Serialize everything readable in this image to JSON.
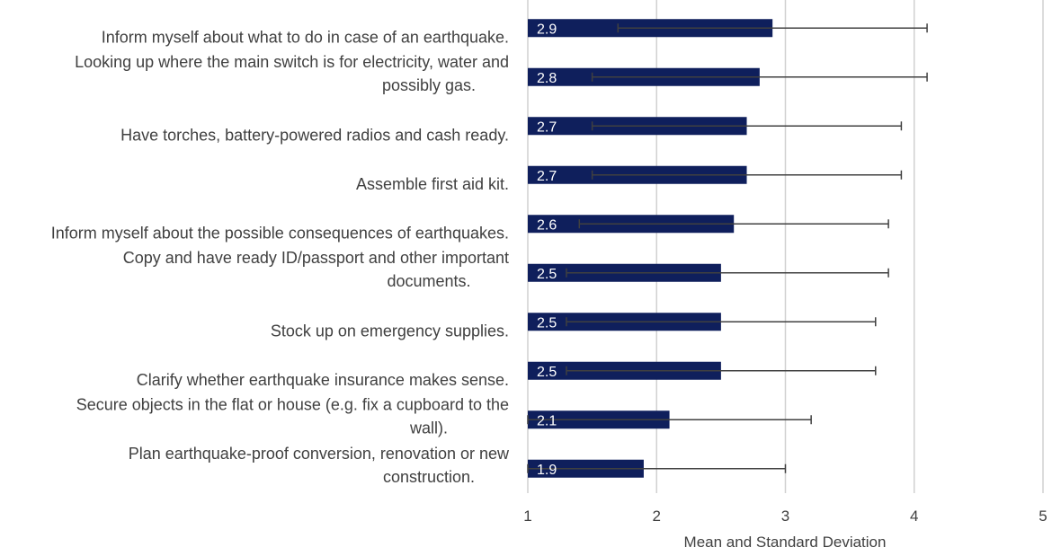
{
  "chart_data": {
    "type": "bar",
    "orientation": "horizontal",
    "title": "",
    "xlabel": "Mean and Standard Deviation",
    "ylabel": "",
    "xlim": [
      1,
      5
    ],
    "x_ticks": [
      "1",
      "2",
      "3",
      "4",
      "5"
    ],
    "grid": "vertical",
    "bar_color": "#0f1f5c",
    "categories": [
      {
        "lines": [
          "Inform myself about what to do in case of an earthquake."
        ]
      },
      {
        "lines": [
          "Looking up where the main switch is for electricity, water and",
          "possibly gas."
        ]
      },
      {
        "lines": [
          "Have torches, battery-powered radios and cash ready."
        ]
      },
      {
        "lines": [
          "Assemble first aid kit."
        ]
      },
      {
        "lines": [
          "Inform myself about the possible consequences of earthquakes."
        ]
      },
      {
        "lines": [
          "Copy and have ready ID/passport and other important",
          "documents."
        ]
      },
      {
        "lines": [
          "Stock up on emergency supplies."
        ]
      },
      {
        "lines": [
          "Clarify whether earthquake insurance makes sense."
        ]
      },
      {
        "lines": [
          "Secure objects in the flat or house (e.g. fix a cupboard to the",
          "wall)."
        ]
      },
      {
        "lines": [
          "Plan earthquake-proof conversion, renovation or new",
          "construction."
        ]
      }
    ],
    "values": [
      2.9,
      2.8,
      2.7,
      2.7,
      2.6,
      2.5,
      2.5,
      2.5,
      2.1,
      1.9
    ],
    "data_labels": [
      "2.9",
      "2.8",
      "2.7",
      "2.7",
      "2.6",
      "2.5",
      "2.5",
      "2.5",
      "2.1",
      "1.9"
    ],
    "error_bars": [
      [
        1.7,
        4.1
      ],
      [
        1.5,
        4.1
      ],
      [
        1.5,
        3.9
      ],
      [
        1.5,
        3.9
      ],
      [
        1.4,
        3.8
      ],
      [
        1.3,
        3.8
      ],
      [
        1.3,
        3.7
      ],
      [
        1.3,
        3.7
      ],
      [
        1.0,
        3.2
      ],
      [
        1.0,
        3.0
      ]
    ]
  }
}
